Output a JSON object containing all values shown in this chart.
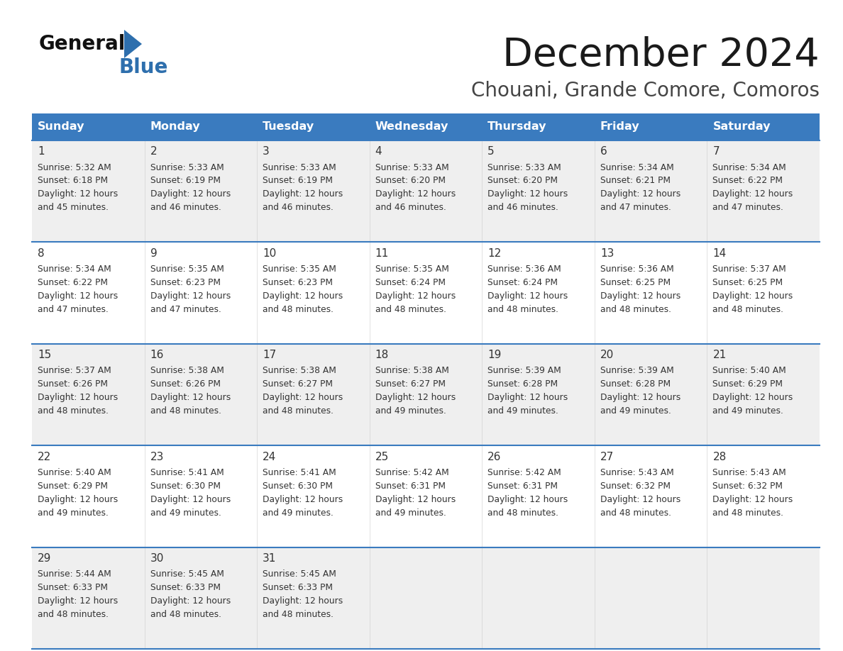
{
  "title": "December 2024",
  "subtitle": "Chouani, Grande Comore, Comoros",
  "header_color": "#3a7bbf",
  "header_text_color": "#ffffff",
  "day_names": [
    "Sunday",
    "Monday",
    "Tuesday",
    "Wednesday",
    "Thursday",
    "Friday",
    "Saturday"
  ],
  "bg_color": "#ffffff",
  "cell_bg_even": "#efefef",
  "cell_bg_odd": "#ffffff",
  "row_line_color": "#3a7bbf",
  "text_color": "#333333",
  "calendar": [
    [
      {
        "day": 1,
        "sunrise": "5:32 AM",
        "sunset": "6:18 PM",
        "daylight": "12 hours and 45 minutes."
      },
      {
        "day": 2,
        "sunrise": "5:33 AM",
        "sunset": "6:19 PM",
        "daylight": "12 hours and 46 minutes."
      },
      {
        "day": 3,
        "sunrise": "5:33 AM",
        "sunset": "6:19 PM",
        "daylight": "12 hours and 46 minutes."
      },
      {
        "day": 4,
        "sunrise": "5:33 AM",
        "sunset": "6:20 PM",
        "daylight": "12 hours and 46 minutes."
      },
      {
        "day": 5,
        "sunrise": "5:33 AM",
        "sunset": "6:20 PM",
        "daylight": "12 hours and 46 minutes."
      },
      {
        "day": 6,
        "sunrise": "5:34 AM",
        "sunset": "6:21 PM",
        "daylight": "12 hours and 47 minutes."
      },
      {
        "day": 7,
        "sunrise": "5:34 AM",
        "sunset": "6:22 PM",
        "daylight": "12 hours and 47 minutes."
      }
    ],
    [
      {
        "day": 8,
        "sunrise": "5:34 AM",
        "sunset": "6:22 PM",
        "daylight": "12 hours and 47 minutes."
      },
      {
        "day": 9,
        "sunrise": "5:35 AM",
        "sunset": "6:23 PM",
        "daylight": "12 hours and 47 minutes."
      },
      {
        "day": 10,
        "sunrise": "5:35 AM",
        "sunset": "6:23 PM",
        "daylight": "12 hours and 48 minutes."
      },
      {
        "day": 11,
        "sunrise": "5:35 AM",
        "sunset": "6:24 PM",
        "daylight": "12 hours and 48 minutes."
      },
      {
        "day": 12,
        "sunrise": "5:36 AM",
        "sunset": "6:24 PM",
        "daylight": "12 hours and 48 minutes."
      },
      {
        "day": 13,
        "sunrise": "5:36 AM",
        "sunset": "6:25 PM",
        "daylight": "12 hours and 48 minutes."
      },
      {
        "day": 14,
        "sunrise": "5:37 AM",
        "sunset": "6:25 PM",
        "daylight": "12 hours and 48 minutes."
      }
    ],
    [
      {
        "day": 15,
        "sunrise": "5:37 AM",
        "sunset": "6:26 PM",
        "daylight": "12 hours and 48 minutes."
      },
      {
        "day": 16,
        "sunrise": "5:38 AM",
        "sunset": "6:26 PM",
        "daylight": "12 hours and 48 minutes."
      },
      {
        "day": 17,
        "sunrise": "5:38 AM",
        "sunset": "6:27 PM",
        "daylight": "12 hours and 48 minutes."
      },
      {
        "day": 18,
        "sunrise": "5:38 AM",
        "sunset": "6:27 PM",
        "daylight": "12 hours and 49 minutes."
      },
      {
        "day": 19,
        "sunrise": "5:39 AM",
        "sunset": "6:28 PM",
        "daylight": "12 hours and 49 minutes."
      },
      {
        "day": 20,
        "sunrise": "5:39 AM",
        "sunset": "6:28 PM",
        "daylight": "12 hours and 49 minutes."
      },
      {
        "day": 21,
        "sunrise": "5:40 AM",
        "sunset": "6:29 PM",
        "daylight": "12 hours and 49 minutes."
      }
    ],
    [
      {
        "day": 22,
        "sunrise": "5:40 AM",
        "sunset": "6:29 PM",
        "daylight": "12 hours and 49 minutes."
      },
      {
        "day": 23,
        "sunrise": "5:41 AM",
        "sunset": "6:30 PM",
        "daylight": "12 hours and 49 minutes."
      },
      {
        "day": 24,
        "sunrise": "5:41 AM",
        "sunset": "6:30 PM",
        "daylight": "12 hours and 49 minutes."
      },
      {
        "day": 25,
        "sunrise": "5:42 AM",
        "sunset": "6:31 PM",
        "daylight": "12 hours and 49 minutes."
      },
      {
        "day": 26,
        "sunrise": "5:42 AM",
        "sunset": "6:31 PM",
        "daylight": "12 hours and 48 minutes."
      },
      {
        "day": 27,
        "sunrise": "5:43 AM",
        "sunset": "6:32 PM",
        "daylight": "12 hours and 48 minutes."
      },
      {
        "day": 28,
        "sunrise": "5:43 AM",
        "sunset": "6:32 PM",
        "daylight": "12 hours and 48 minutes."
      }
    ],
    [
      {
        "day": 29,
        "sunrise": "5:44 AM",
        "sunset": "6:33 PM",
        "daylight": "12 hours and 48 minutes."
      },
      {
        "day": 30,
        "sunrise": "5:45 AM",
        "sunset": "6:33 PM",
        "daylight": "12 hours and 48 minutes."
      },
      {
        "day": 31,
        "sunrise": "5:45 AM",
        "sunset": "6:33 PM",
        "daylight": "12 hours and 48 minutes."
      },
      null,
      null,
      null,
      null
    ]
  ]
}
